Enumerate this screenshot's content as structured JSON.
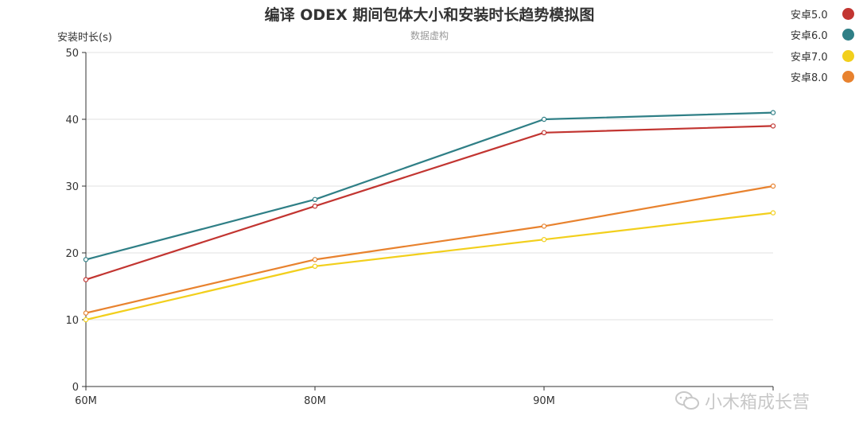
{
  "chart_data": {
    "type": "line",
    "title": "编译 ODEX 期间包体大小和安装时长趋势模拟图",
    "subtitle": "数据虚构",
    "ylabel": "安装时长(s)",
    "xlabel": "",
    "categories": [
      "60M",
      "80M",
      "90M",
      ""
    ],
    "ylim": [
      0,
      50
    ],
    "yticks": [
      0,
      10,
      20,
      30,
      40,
      50
    ],
    "grid": true,
    "legend_position": "top-right",
    "series": [
      {
        "name": "安卓5.0",
        "color": "#c23531",
        "values": [
          16,
          27,
          38,
          39
        ]
      },
      {
        "name": "安卓6.0",
        "color": "#2f7f86",
        "values": [
          19,
          28,
          40,
          41
        ]
      },
      {
        "name": "安卓7.0",
        "color": "#f2cf1c",
        "values": [
          10,
          18,
          22,
          26
        ]
      },
      {
        "name": "安卓8.0",
        "color": "#e8822e",
        "values": [
          11,
          19,
          24,
          30
        ]
      }
    ]
  },
  "watermark": {
    "text": "小木箱成长营",
    "icon": "chat-bubble-icon"
  }
}
